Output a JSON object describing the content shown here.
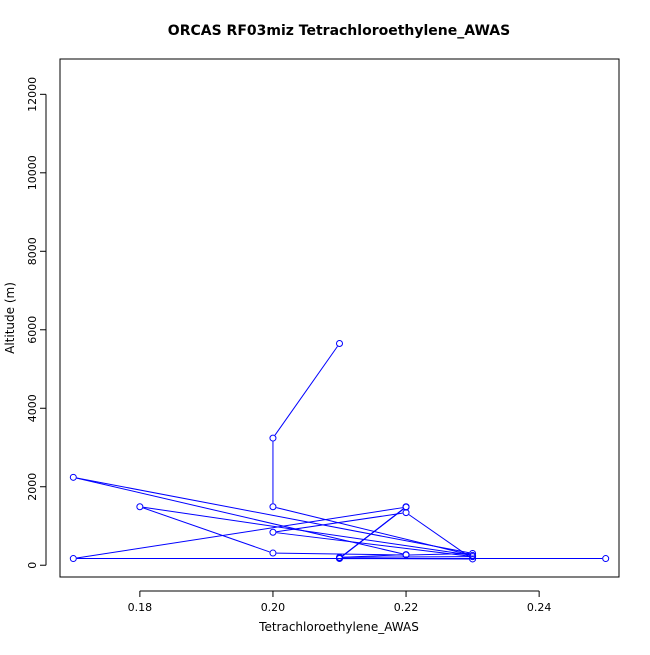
{
  "chart_data": {
    "type": "line",
    "title": "ORCAS RF03miz Tetrachloroethylene_AWAS",
    "xlabel": "Tetrachloroethylene_AWAS",
    "ylabel": "Altitude (m)",
    "xlim": [
      0.168,
      0.252
    ],
    "ylim": [
      -300,
      12900
    ],
    "xticks": [
      0.18,
      0.2,
      0.22,
      0.24
    ],
    "xtick_labels": [
      "0.18",
      "0.20",
      "0.22",
      "0.24"
    ],
    "yticks": [
      0,
      2000,
      4000,
      6000,
      8000,
      10000,
      12000
    ],
    "ytick_labels": [
      "0",
      "2000",
      "4000",
      "6000",
      "8000",
      "10000",
      "12000"
    ],
    "grid": false,
    "legend": "none",
    "colors": {
      "series": "#0000ff",
      "axes": "#000000",
      "background": "#ffffff"
    },
    "series": [
      {
        "marker": "open-circle",
        "points": [
          [
            0.21,
            5650
          ],
          [
            0.2,
            3240
          ],
          [
            0.2,
            1490
          ],
          [
            0.23,
            250
          ],
          [
            0.18,
            1490
          ],
          [
            0.2,
            310
          ],
          [
            0.22,
            260
          ],
          [
            0.23,
            300
          ],
          [
            0.17,
            2240
          ],
          [
            0.22,
            270
          ],
          [
            0.21,
            200
          ],
          [
            0.23,
            220
          ],
          [
            0.2,
            840
          ],
          [
            0.22,
            1340
          ],
          [
            0.23,
            160
          ],
          [
            0.21,
            170
          ],
          [
            0.22,
            1490
          ],
          [
            0.21,
            180
          ],
          [
            0.22,
            1480
          ],
          [
            0.17,
            170
          ],
          [
            0.25,
            170
          ]
        ]
      }
    ]
  }
}
